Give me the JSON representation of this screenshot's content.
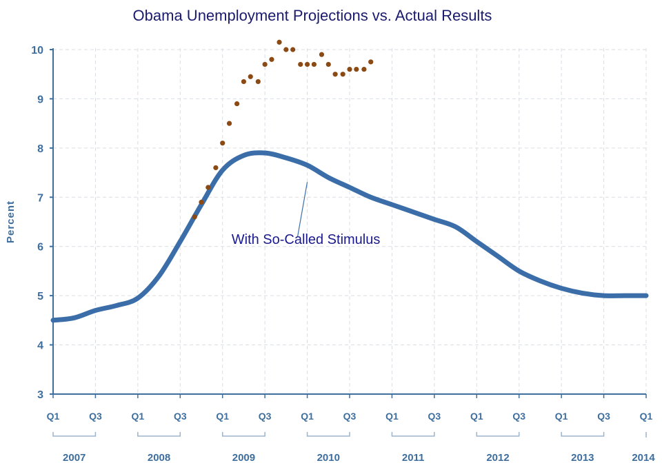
{
  "chart_data": {
    "type": "line",
    "title": "Obama Unemployment Projections vs. Actual Results",
    "ylabel": "Percent",
    "xlabel": "",
    "ylim": [
      3,
      10
    ],
    "y_ticks": [
      "3",
      "4",
      "5",
      "6",
      "7",
      "8",
      "9",
      "10"
    ],
    "x_quarter_ticks": [
      "Q1",
      "Q3",
      "Q1",
      "Q3",
      "Q1",
      "Q3",
      "Q1",
      "Q3",
      "Q1",
      "Q3",
      "Q1",
      "Q3",
      "Q1",
      "Q3",
      "Q1"
    ],
    "x_years": [
      "2007",
      "2008",
      "2009",
      "2010",
      "2011",
      "2012",
      "2013",
      "2014"
    ],
    "grid": true,
    "colors": {
      "projection": "#3b6ea8",
      "actual": "#8b4a14",
      "axis": "#3d6e9e",
      "title": "#1a1a6e"
    },
    "series": [
      {
        "kind": "line",
        "x": [
          2007.0,
          2007.25,
          2007.5,
          2007.75,
          2008.0,
          2008.25,
          2008.5,
          2008.75,
          2009.0,
          2009.25,
          2009.5,
          2009.75,
          2010.0,
          2010.25,
          2010.5,
          2010.75,
          2011.0,
          2011.25,
          2011.5,
          2011.75,
          2012.0,
          2012.25,
          2012.5,
          2012.75,
          2013.0,
          2013.25,
          2013.5,
          2013.75,
          2014.0
        ],
        "values": [
          4.5,
          4.55,
          4.7,
          4.8,
          4.95,
          5.4,
          6.1,
          6.85,
          7.55,
          7.85,
          7.9,
          7.8,
          7.65,
          7.4,
          7.2,
          7.0,
          6.85,
          6.7,
          6.55,
          6.4,
          6.1,
          5.8,
          5.5,
          5.3,
          5.15,
          5.05,
          5.0,
          5.0,
          5.0
        ]
      },
      {
        "kind": "scatter",
        "x": [
          2008.67,
          2008.75,
          2008.83,
          2008.92,
          2009.0,
          2009.08,
          2009.17,
          2009.25,
          2009.33,
          2009.42,
          2009.5,
          2009.58,
          2009.67,
          2009.75,
          2009.83,
          2009.92,
          2010.0,
          2010.08,
          2010.17,
          2010.25,
          2010.33,
          2010.42,
          2010.5,
          2010.58,
          2010.67,
          2010.75
        ],
        "values": [
          6.6,
          6.9,
          7.2,
          7.6,
          8.1,
          8.5,
          8.9,
          9.35,
          9.45,
          9.35,
          9.7,
          9.8,
          10.15,
          10.0,
          10.0,
          9.7,
          9.7,
          9.7,
          9.9,
          9.7,
          9.5,
          9.5,
          9.6,
          9.6,
          9.6,
          9.75
        ]
      }
    ],
    "annotations": [
      {
        "text": "With So-Called Stimulus",
        "x": 2010.0,
        "y": 7.35
      }
    ]
  }
}
